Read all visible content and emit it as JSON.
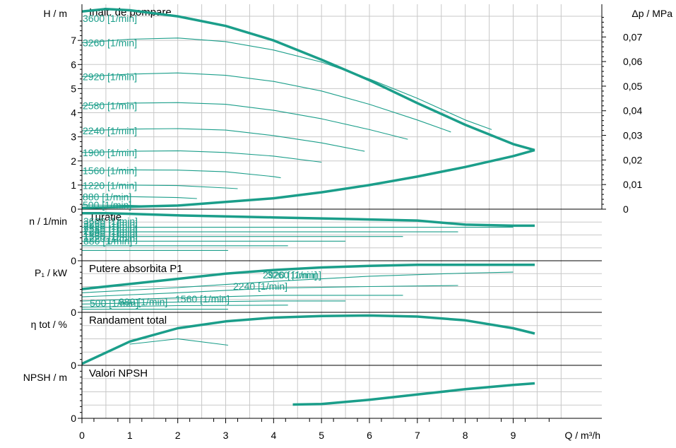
{
  "chart_data": [
    {
      "type": "line",
      "panel": "head",
      "title": "Inalt. de pompare",
      "ylabel": "H / m",
      "ylabel_right": "Δp / MPa",
      "xlabel": "Q / m³/h",
      "xlim": [
        0,
        10
      ],
      "ylim": [
        0,
        8.5
      ],
      "yticks": [
        "0",
        "1",
        "2",
        "3",
        "4",
        "5",
        "6",
        "7"
      ],
      "yticks_right": [
        "0",
        "0,01",
        "0,02",
        "0,03",
        "0,04",
        "0,05",
        "0,06",
        "0,07"
      ],
      "xticks": [
        "0",
        "1",
        "2",
        "3",
        "4",
        "5",
        "6",
        "7",
        "8",
        "9"
      ],
      "grid": true,
      "series": [
        {
          "name": "3600 [1/min]",
          "x": [
            0,
            0.5,
            1,
            2,
            3,
            4,
            5,
            6,
            7,
            8,
            9,
            9.45
          ],
          "y": [
            8.2,
            8.3,
            8.25,
            8.0,
            7.6,
            7.0,
            6.2,
            5.35,
            4.4,
            3.5,
            2.7,
            2.45
          ],
          "bold": true
        },
        {
          "name": "3260 [1/min]",
          "x": [
            0,
            1,
            2,
            3,
            4,
            5,
            6,
            7,
            8,
            8.55
          ],
          "y": [
            6.9,
            7.05,
            7.1,
            6.95,
            6.6,
            6.1,
            5.4,
            4.6,
            3.7,
            3.3
          ]
        },
        {
          "name": "2920 [1/min]",
          "x": [
            0,
            1,
            2,
            3,
            4,
            5,
            6,
            7,
            7.7
          ],
          "y": [
            5.5,
            5.6,
            5.65,
            5.55,
            5.3,
            4.9,
            4.35,
            3.7,
            3.2
          ]
        },
        {
          "name": "2580 [1/min]",
          "x": [
            0,
            1,
            2,
            3,
            4,
            5,
            6,
            6.8
          ],
          "y": [
            4.3,
            4.4,
            4.42,
            4.35,
            4.1,
            3.75,
            3.3,
            2.9
          ]
        },
        {
          "name": "2240 [1/min]",
          "x": [
            0,
            1,
            2,
            3,
            4,
            5,
            5.9
          ],
          "y": [
            3.25,
            3.32,
            3.34,
            3.28,
            3.05,
            2.75,
            2.4
          ]
        },
        {
          "name": "1900 [1/min]",
          "x": [
            0,
            1,
            2,
            3,
            4,
            5
          ],
          "y": [
            2.35,
            2.4,
            2.42,
            2.35,
            2.2,
            1.95
          ]
        },
        {
          "name": "1560 [1/min]",
          "x": [
            0,
            1,
            2,
            3,
            4,
            4.15
          ],
          "y": [
            1.6,
            1.63,
            1.62,
            1.55,
            1.35,
            1.3
          ]
        },
        {
          "name": "1220 [1/min]",
          "x": [
            0,
            1,
            2,
            3,
            3.25
          ],
          "y": [
            0.98,
            1.0,
            0.98,
            0.88,
            0.85
          ]
        },
        {
          "name": "880 [1/min]",
          "x": [
            0,
            1,
            2,
            2.4
          ],
          "y": [
            0.52,
            0.52,
            0.48,
            0.44
          ]
        },
        {
          "name": "500 [1/min]",
          "x": [
            0,
            1,
            1.3
          ],
          "y": [
            0.17,
            0.16,
            0.14
          ]
        },
        {
          "name": "",
          "x": [
            0,
            2,
            4,
            5,
            6,
            7,
            8,
            9,
            9.45
          ],
          "y": [
            0.05,
            0.15,
            0.45,
            0.7,
            1.0,
            1.35,
            1.75,
            2.2,
            2.45
          ],
          "bold": true
        }
      ]
    },
    {
      "type": "line",
      "panel": "speed",
      "title": "Turatie",
      "ylabel": "n / 1/min",
      "ylim": [
        0,
        1
      ],
      "yticks": [
        "0"
      ],
      "labels": [
        "3600 [1/min]",
        "3260 [1/min]",
        "2920 [1/min]",
        "2580 [1/min]",
        "2240 [1/min]",
        "1900 [1/min]",
        "1560 [1/min]",
        "1220 [1/min]",
        "880 [1/min]"
      ],
      "series": [
        {
          "x": [
            0,
            0.5,
            1,
            2,
            3,
            4,
            5,
            6,
            7,
            8,
            9,
            9.45
          ],
          "y": [
            0.92,
            0.92,
            0.91,
            0.88,
            0.86,
            0.84,
            0.82,
            0.8,
            0.78,
            0.7,
            0.68,
            0.68
          ],
          "bold": true
        },
        {
          "x": [
            0,
            9.0
          ],
          "y": [
            0.65,
            0.65
          ]
        },
        {
          "x": [
            0,
            7.85
          ],
          "y": [
            0.56,
            0.56
          ]
        },
        {
          "x": [
            0,
            6.7
          ],
          "y": [
            0.47,
            0.47
          ]
        },
        {
          "x": [
            0,
            5.5
          ],
          "y": [
            0.38,
            0.38
          ]
        },
        {
          "x": [
            0,
            4.3
          ],
          "y": [
            0.29,
            0.29
          ]
        },
        {
          "x": [
            0,
            3.05
          ],
          "y": [
            0.2,
            0.2
          ]
        }
      ]
    },
    {
      "type": "line",
      "panel": "power",
      "title": "Putere absorbita P1",
      "ylabel": "P₁ / kW",
      "ylim": [
        0,
        1
      ],
      "yticks": [
        "0"
      ],
      "labels": [
        "2920 [1/min]",
        "3260 [1/min]",
        "2240 [1/min]",
        "1560 [1/min]",
        "880 [1/min]",
        "500 [1/min]"
      ],
      "series": [
        {
          "x": [
            0,
            1,
            2,
            3,
            4,
            5,
            6,
            7,
            8,
            9,
            9.45
          ],
          "y": [
            0.45,
            0.55,
            0.65,
            0.75,
            0.82,
            0.87,
            0.9,
            0.92,
            0.92,
            0.92,
            0.92
          ],
          "bold": true
        },
        {
          "x": [
            0,
            2,
            4,
            6,
            8,
            9.0
          ],
          "y": [
            0.38,
            0.48,
            0.6,
            0.7,
            0.76,
            0.78
          ]
        },
        {
          "x": [
            0,
            2,
            4,
            6,
            7.85
          ],
          "y": [
            0.3,
            0.38,
            0.47,
            0.5,
            0.52
          ]
        },
        {
          "x": [
            0,
            2,
            4,
            6.7
          ],
          "y": [
            0.22,
            0.28,
            0.33,
            0.33
          ]
        },
        {
          "x": [
            0,
            2,
            4,
            5.5
          ],
          "y": [
            0.16,
            0.2,
            0.22,
            0.22
          ]
        },
        {
          "x": [
            0,
            2,
            4.3
          ],
          "y": [
            0.1,
            0.13,
            0.14
          ]
        },
        {
          "x": [
            0,
            3.05
          ],
          "y": [
            0.06,
            0.06
          ]
        }
      ]
    },
    {
      "type": "line",
      "panel": "efficiency",
      "title": "Randament total",
      "ylabel": "η tot / %",
      "ylim": [
        0,
        1
      ],
      "yticks": [
        "0"
      ],
      "series": [
        {
          "x": [
            0,
            1,
            2,
            3,
            4,
            5,
            6,
            7,
            8,
            9,
            9.45
          ],
          "y": [
            0.03,
            0.45,
            0.7,
            0.83,
            0.9,
            0.93,
            0.94,
            0.92,
            0.85,
            0.7,
            0.6
          ],
          "bold": true
        },
        {
          "x": [
            1,
            2,
            3.05
          ],
          "y": [
            0.4,
            0.5,
            0.38
          ]
        }
      ]
    },
    {
      "type": "line",
      "panel": "npsh",
      "title": "Valori NPSH",
      "ylabel": "NPSH / m",
      "ylim": [
        0,
        1
      ],
      "yticks": [
        "0"
      ],
      "series": [
        {
          "x": [
            4.4,
            5,
            6,
            7,
            8,
            9,
            9.45
          ],
          "y": [
            0.26,
            0.27,
            0.35,
            0.45,
            0.55,
            0.63,
            0.66
          ],
          "bold": true
        }
      ]
    }
  ],
  "colors": {
    "curve": "#1b9e8a",
    "axis": "#000000",
    "grid": "#c8c8c8"
  }
}
